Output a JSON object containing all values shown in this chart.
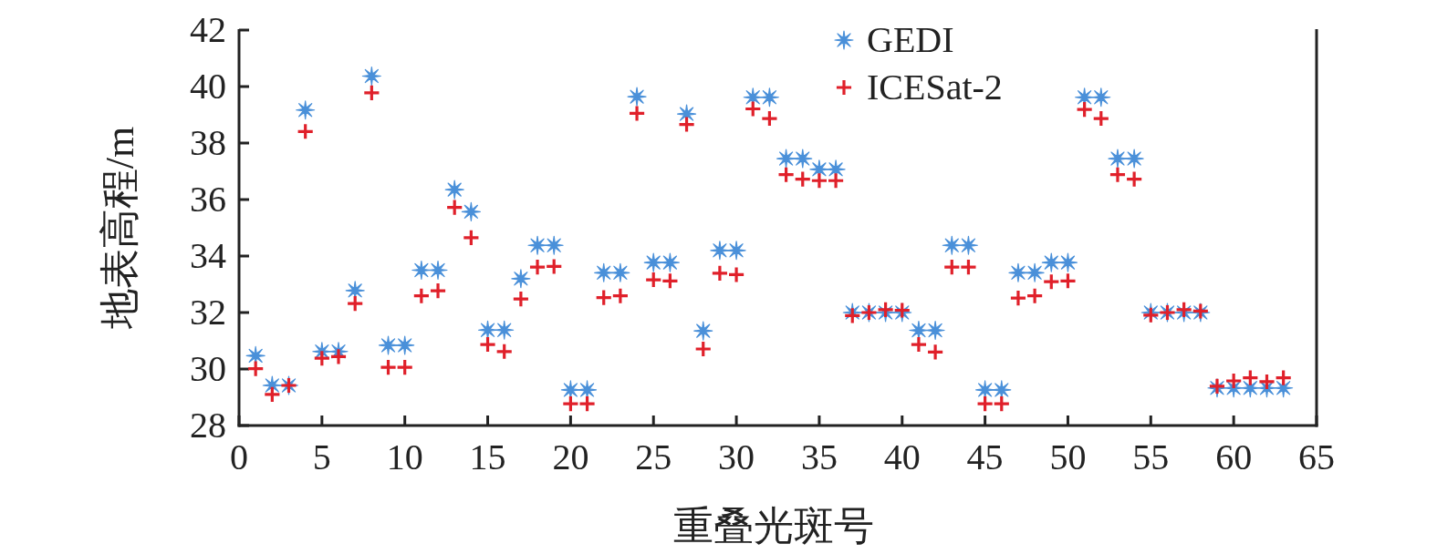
{
  "chart_data": {
    "type": "scatter",
    "xlabel": "重叠光斑号",
    "ylabel": "地表高程/m",
    "x": [
      1,
      2,
      3,
      4,
      5,
      6,
      7,
      8,
      9,
      10,
      11,
      12,
      13,
      14,
      15,
      16,
      17,
      18,
      19,
      20,
      21,
      22,
      23,
      24,
      25,
      26,
      27,
      28,
      29,
      30,
      31,
      32,
      33,
      34,
      35,
      36,
      37,
      38,
      39,
      40,
      41,
      42,
      43,
      44,
      45,
      46,
      47,
      48,
      49,
      50,
      51,
      52,
      53,
      54,
      55,
      56,
      57,
      58,
      59,
      60,
      61,
      62,
      63
    ],
    "series": [
      {
        "name": "GEDI",
        "color": "#4a90d9",
        "marker": "star",
        "values": [
          30.47,
          29.42,
          29.42,
          39.17,
          30.62,
          30.62,
          32.78,
          40.37,
          30.84,
          30.84,
          33.5,
          33.5,
          36.35,
          35.57,
          31.38,
          31.38,
          33.2,
          34.38,
          34.38,
          29.26,
          29.26,
          33.41,
          33.41,
          39.64,
          33.77,
          33.77,
          39.03,
          31.35,
          34.2,
          34.2,
          39.62,
          39.62,
          37.45,
          37.45,
          37.07,
          37.07,
          32.0,
          32.0,
          32.0,
          32.0,
          31.37,
          31.37,
          34.38,
          34.38,
          29.26,
          29.26,
          33.41,
          33.41,
          33.77,
          33.77,
          39.62,
          39.62,
          37.45,
          37.45,
          32.0,
          32.0,
          32.0,
          32.0,
          29.33,
          29.33,
          29.33,
          29.33,
          29.33
        ]
      },
      {
        "name": "ICESat-2",
        "color": "#e0202a",
        "marker": "cross",
        "values": [
          30.01,
          29.1,
          29.42,
          38.41,
          30.38,
          30.44,
          32.32,
          39.78,
          30.06,
          30.06,
          32.59,
          32.77,
          35.72,
          34.65,
          30.87,
          30.62,
          32.48,
          33.61,
          33.63,
          28.77,
          28.77,
          32.53,
          32.59,
          39.05,
          33.16,
          33.12,
          38.66,
          30.71,
          33.39,
          33.34,
          39.21,
          38.87,
          36.88,
          36.72,
          36.67,
          36.67,
          31.89,
          32.0,
          32.1,
          32.08,
          30.87,
          30.6,
          33.61,
          33.61,
          28.77,
          28.77,
          32.51,
          32.59,
          33.09,
          33.12,
          39.19,
          38.87,
          36.88,
          36.72,
          31.91,
          32.0,
          32.1,
          32.05,
          29.39,
          29.58,
          29.69,
          29.55,
          29.69
        ]
      }
    ],
    "xlim": [
      0,
      65
    ],
    "xticks": [
      0,
      5,
      10,
      15,
      20,
      25,
      30,
      35,
      40,
      45,
      50,
      55,
      60,
      65
    ],
    "ylim": [
      28,
      42
    ],
    "yticks": [
      28,
      30,
      32,
      34,
      36,
      38,
      40,
      42
    ],
    "legend": "top"
  }
}
